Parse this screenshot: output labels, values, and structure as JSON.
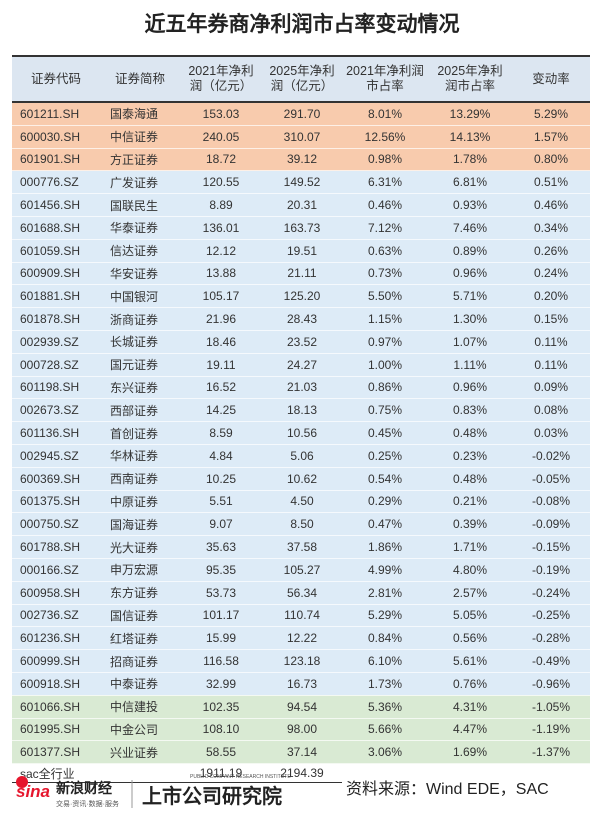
{
  "header": {
    "title": "近五年券商净利润市占率变动情况"
  },
  "table": {
    "columns": [
      "证券代码",
      "证券简称",
      "2021年净利润（亿元）",
      "2025年净利润（亿元）",
      "2021年净利润市占率",
      "2025年净利润市占率",
      "变动率"
    ],
    "sections": [
      {
        "color": "#f8cbad",
        "rows": [
          [
            "601211.SH",
            "国泰海通",
            "153.03",
            "291.70",
            "8.01%",
            "13.29%",
            "5.29%"
          ],
          [
            "600030.SH",
            "中信证券",
            "240.05",
            "310.07",
            "12.56%",
            "14.13%",
            "1.57%"
          ],
          [
            "601901.SH",
            "方正证券",
            "18.72",
            "39.12",
            "0.98%",
            "1.78%",
            "0.80%"
          ]
        ]
      },
      {
        "color": "#ddebf7",
        "rows": [
          [
            "000776.SZ",
            "广发证券",
            "120.55",
            "149.52",
            "6.31%",
            "6.81%",
            "0.51%"
          ],
          [
            "601456.SH",
            "国联民生",
            "8.89",
            "20.31",
            "0.46%",
            "0.93%",
            "0.46%"
          ],
          [
            "601688.SH",
            "华泰证券",
            "136.01",
            "163.73",
            "7.12%",
            "7.46%",
            "0.34%"
          ],
          [
            "601059.SH",
            "信达证券",
            "12.12",
            "19.51",
            "0.63%",
            "0.89%",
            "0.26%"
          ],
          [
            "600909.SH",
            "华安证券",
            "13.88",
            "21.11",
            "0.73%",
            "0.96%",
            "0.24%"
          ],
          [
            "601881.SH",
            "中国银河",
            "105.17",
            "125.20",
            "5.50%",
            "5.71%",
            "0.20%"
          ],
          [
            "601878.SH",
            "浙商证券",
            "21.96",
            "28.43",
            "1.15%",
            "1.30%",
            "0.15%"
          ],
          [
            "002939.SZ",
            "长城证券",
            "18.46",
            "23.52",
            "0.97%",
            "1.07%",
            "0.11%"
          ],
          [
            "000728.SZ",
            "国元证券",
            "19.11",
            "24.27",
            "1.00%",
            "1.11%",
            "0.11%"
          ],
          [
            "601198.SH",
            "东兴证券",
            "16.52",
            "21.03",
            "0.86%",
            "0.96%",
            "0.09%"
          ],
          [
            "002673.SZ",
            "西部证券",
            "14.25",
            "18.13",
            "0.75%",
            "0.83%",
            "0.08%"
          ],
          [
            "601136.SH",
            "首创证券",
            "8.59",
            "10.56",
            "0.45%",
            "0.48%",
            "0.03%"
          ],
          [
            "002945.SZ",
            "华林证券",
            "4.84",
            "5.06",
            "0.25%",
            "0.23%",
            "-0.02%"
          ],
          [
            "600369.SH",
            "西南证券",
            "10.25",
            "10.62",
            "0.54%",
            "0.48%",
            "-0.05%"
          ],
          [
            "601375.SH",
            "中原证券",
            "5.51",
            "4.50",
            "0.29%",
            "0.21%",
            "-0.08%"
          ],
          [
            "000750.SZ",
            "国海证券",
            "9.07",
            "8.50",
            "0.47%",
            "0.39%",
            "-0.09%"
          ],
          [
            "601788.SH",
            "光大证券",
            "35.63",
            "37.58",
            "1.86%",
            "1.71%",
            "-0.15%"
          ],
          [
            "000166.SZ",
            "申万宏源",
            "95.35",
            "105.27",
            "4.99%",
            "4.80%",
            "-0.19%"
          ],
          [
            "600958.SH",
            "东方证券",
            "53.73",
            "56.34",
            "2.81%",
            "2.57%",
            "-0.24%"
          ],
          [
            "002736.SZ",
            "国信证券",
            "101.17",
            "110.74",
            "5.29%",
            "5.05%",
            "-0.25%"
          ],
          [
            "601236.SH",
            "红塔证券",
            "15.99",
            "12.22",
            "0.84%",
            "0.56%",
            "-0.28%"
          ],
          [
            "600999.SH",
            "招商证券",
            "116.58",
            "123.18",
            "6.10%",
            "5.61%",
            "-0.49%"
          ],
          [
            "600918.SH",
            "中泰证券",
            "32.99",
            "16.73",
            "1.73%",
            "0.76%",
            "-0.96%"
          ]
        ]
      },
      {
        "color": "#d9ead3",
        "rows": [
          [
            "601066.SH",
            "中信建投",
            "102.35",
            "94.54",
            "5.36%",
            "4.31%",
            "-1.05%"
          ],
          [
            "601995.SH",
            "中金公司",
            "108.10",
            "98.00",
            "5.66%",
            "4.47%",
            "-1.19%"
          ],
          [
            "601377.SH",
            "兴业证券",
            "58.55",
            "37.14",
            "3.06%",
            "1.69%",
            "-1.37%"
          ]
        ]
      }
    ],
    "total": {
      "label": "sac全行业",
      "values": [
        "1911.19",
        "2194.39"
      ]
    }
  },
  "footer": {
    "sina": "sina",
    "sina_name": "新浪财经",
    "sina_tagline": "交易·资讯·数据·服务",
    "institute": "上市公司研究院",
    "institute_en": "PUBLIC COMPANY RESEARCH INSTITUTE",
    "source": "资料来源：Wind EDE，SAC"
  }
}
